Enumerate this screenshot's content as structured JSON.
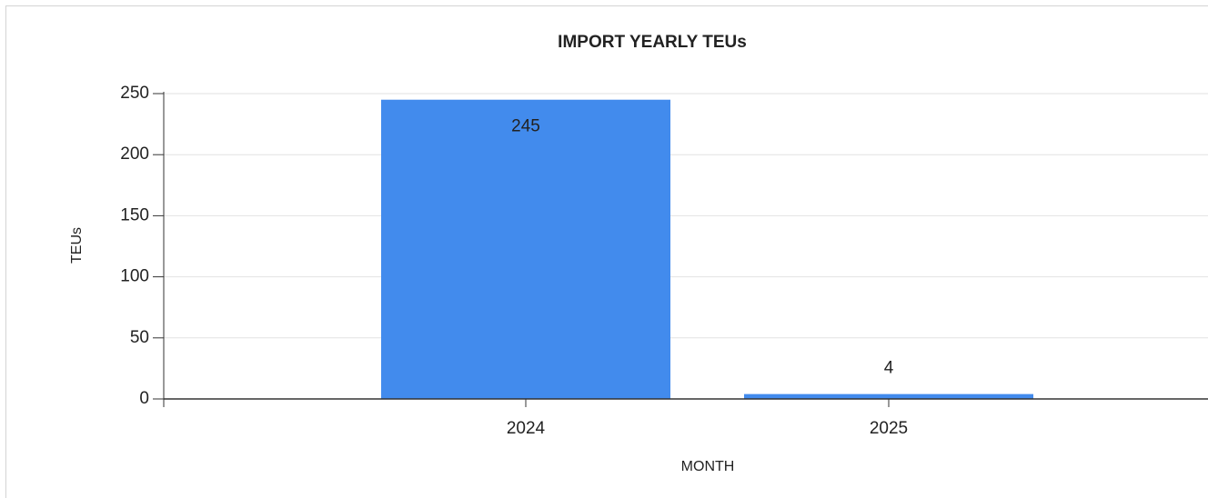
{
  "chart_data": {
    "type": "bar",
    "title": "IMPORT YEARLY TEUs",
    "x_label": "MONTH",
    "y_label": "TEUs",
    "categories": [
      "2024",
      "2025"
    ],
    "values": [
      245,
      4
    ],
    "color": "#428bed",
    "ylim": [
      0,
      250
    ],
    "yticks": [
      0,
      50,
      100,
      150,
      200,
      250
    ],
    "grid": true
  }
}
